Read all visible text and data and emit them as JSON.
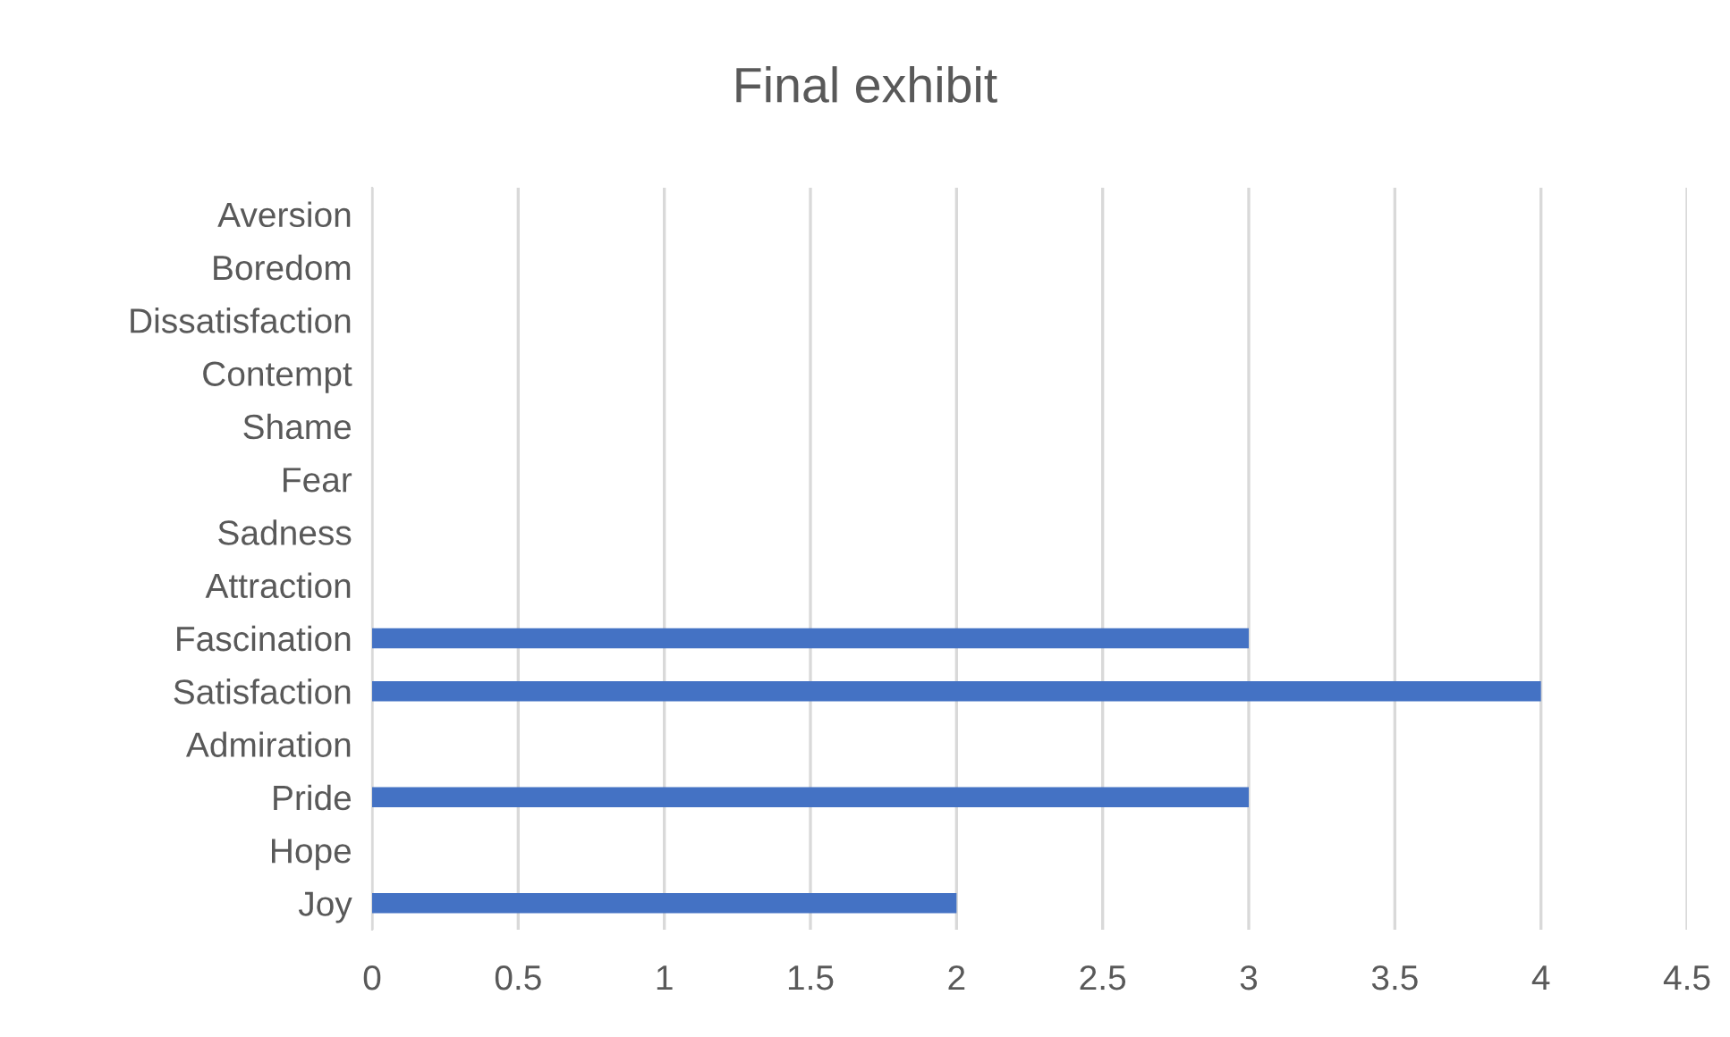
{
  "chart_data": {
    "type": "bar",
    "orientation": "horizontal",
    "title": "Final exhibit",
    "categories": [
      "Aversion",
      "Boredom",
      "Dissatisfaction",
      "Contempt",
      "Shame",
      "Fear",
      "Sadness",
      "Attraction",
      "Fascination",
      "Satisfaction",
      "Admiration",
      "Pride",
      "Hope",
      "Joy"
    ],
    "values": [
      0,
      0,
      0,
      0,
      0,
      0,
      0,
      0,
      3,
      4,
      0,
      3,
      0,
      2
    ],
    "color": "#4472c4",
    "xlim": [
      0,
      4.5
    ],
    "xticks": [
      0,
      0.5,
      1,
      1.5,
      2,
      2.5,
      3,
      3.5,
      4,
      4.5
    ],
    "grid": "x"
  }
}
